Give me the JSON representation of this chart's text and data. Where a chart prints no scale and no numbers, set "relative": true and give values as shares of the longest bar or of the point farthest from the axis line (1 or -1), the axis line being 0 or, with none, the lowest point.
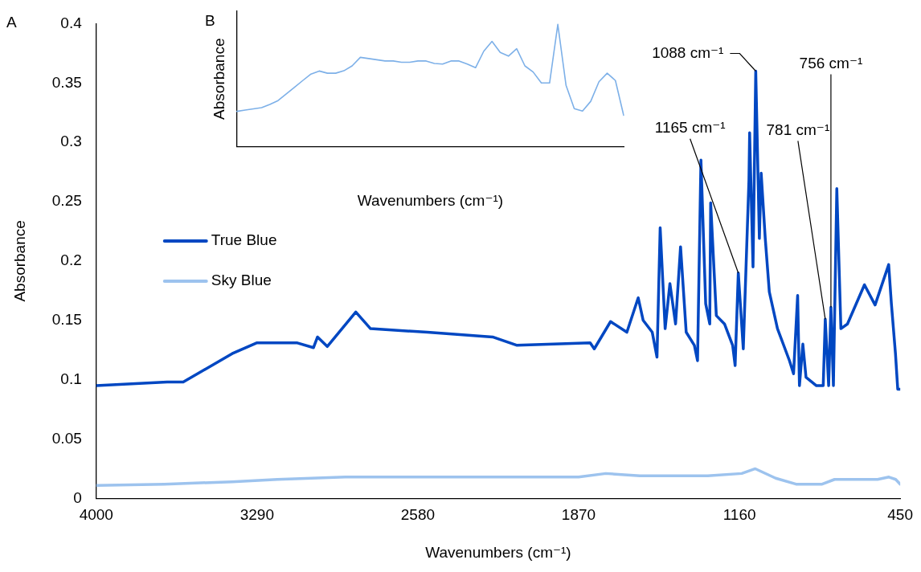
{
  "chart_data": [
    {
      "type": "line",
      "xlabel": "Wavenumbers (cm⁻¹)",
      "ylabel": "Absorbance",
      "xlim": [
        4000,
        450
      ],
      "xticks": [
        4000,
        3290,
        2580,
        1870,
        1160,
        450
      ],
      "ylim": [
        0,
        0.4
      ],
      "yticks": [
        0,
        0.05,
        0.1,
        0.15,
        0.2,
        0.25,
        0.3,
        0.35,
        0.4
      ],
      "grid": false,
      "legend": "left",
      "annotations": [
        "A",
        {
          "text": "1088 cm⁻¹",
          "x": 1088,
          "y": 0.36
        },
        {
          "text": "1165 cm⁻¹",
          "x": 1165,
          "y": 0.19
        },
        {
          "text": "781 cm⁻¹",
          "x": 781,
          "y": 0.151
        },
        {
          "text": "756 cm⁻¹",
          "x": 756,
          "y": 0.161
        }
      ],
      "series": [
        {
          "name": "True Blue",
          "color": "#0047c2",
          "x": [
            4000,
            3687,
            3616,
            3400,
            3292,
            3112,
            3041,
            3023,
            2980,
            2854,
            2789,
            2538,
            2250,
            2142,
            1819,
            1801,
            1729,
            1657,
            1607,
            1585,
            1545,
            1524,
            1510,
            1488,
            1467,
            1442,
            1420,
            1395,
            1359,
            1345,
            1330,
            1309,
            1291,
            1287,
            1262,
            1226,
            1190,
            1179,
            1165,
            1143,
            1118,
            1115,
            1100,
            1088,
            1072,
            1064,
            1046,
            1028,
            992,
            939,
            921,
            903,
            895,
            880,
            866,
            820,
            790,
            781,
            766,
            756,
            745,
            730,
            712,
            683,
            608,
            561,
            501,
            489,
            471,
            461,
            450
          ],
          "values": [
            0.095,
            0.098,
            0.098,
            0.122,
            0.131,
            0.131,
            0.127,
            0.136,
            0.128,
            0.157,
            0.143,
            0.14,
            0.136,
            0.129,
            0.131,
            0.126,
            0.149,
            0.14,
            0.169,
            0.15,
            0.14,
            0.119,
            0.228,
            0.143,
            0.181,
            0.147,
            0.212,
            0.14,
            0.129,
            0.116,
            0.285,
            0.164,
            0.147,
            0.249,
            0.154,
            0.147,
            0.129,
            0.112,
            0.19,
            0.126,
            0.268,
            0.308,
            0.195,
            0.36,
            0.219,
            0.274,
            0.219,
            0.174,
            0.143,
            0.116,
            0.105,
            0.171,
            0.095,
            0.13,
            0.102,
            0.095,
            0.095,
            0.151,
            0.095,
            0.161,
            0.095,
            0.261,
            0.143,
            0.147,
            0.18,
            0.163,
            0.197,
            0.164,
            0.122,
            0.092,
            0.092
          ]
        },
        {
          "name": "Sky Blue",
          "color": "#9dc3ee",
          "x": [
            4000,
            3700,
            3400,
            3200,
            2900,
            1870,
            1750,
            1600,
            1300,
            1150,
            1090,
            1000,
            910,
            795,
            740,
            550,
            500,
            470,
            450
          ],
          "values": [
            0.011,
            0.012,
            0.014,
            0.016,
            0.018,
            0.018,
            0.021,
            0.019,
            0.019,
            0.021,
            0.025,
            0.017,
            0.012,
            0.012,
            0.016,
            0.016,
            0.018,
            0.016,
            0.012
          ]
        }
      ]
    },
    {
      "type": "line",
      "xlabel": "Wavenumbers (cm⁻¹)",
      "ylabel": "Absorbance",
      "relative": true,
      "grid": false,
      "annotations": [
        "B"
      ],
      "categories": [
        null,
        null,
        null,
        null,
        null,
        null,
        null,
        null,
        null,
        null,
        null,
        null,
        null,
        null,
        null,
        null,
        null,
        null,
        null,
        null,
        null,
        null,
        null,
        null,
        null,
        null,
        null,
        null,
        null,
        null,
        null,
        null,
        null,
        null,
        null,
        null,
        null,
        null,
        null,
        null,
        null,
        null,
        null,
        null,
        null,
        null,
        null,
        null
      ],
      "series": [
        {
          "color": "#7db0e8",
          "values": [
            0.288,
            0.298,
            0.308,
            0.318,
            0.345,
            0.376,
            0.43,
            0.485,
            0.54,
            0.593,
            0.618,
            0.6,
            0.6,
            0.62,
            0.66,
            0.73,
            0.72,
            0.71,
            0.7,
            0.7,
            0.69,
            0.69,
            0.7,
            0.7,
            0.68,
            0.675,
            0.7,
            0.7,
            0.675,
            0.645,
            0.78,
            0.86,
            0.77,
            0.74,
            0.8,
            0.66,
            0.61,
            0.52,
            0.52,
            1.0,
            0.5,
            0.31,
            0.29,
            0.37,
            0.53,
            0.6,
            0.54,
            0.256
          ]
        }
      ]
    }
  ]
}
